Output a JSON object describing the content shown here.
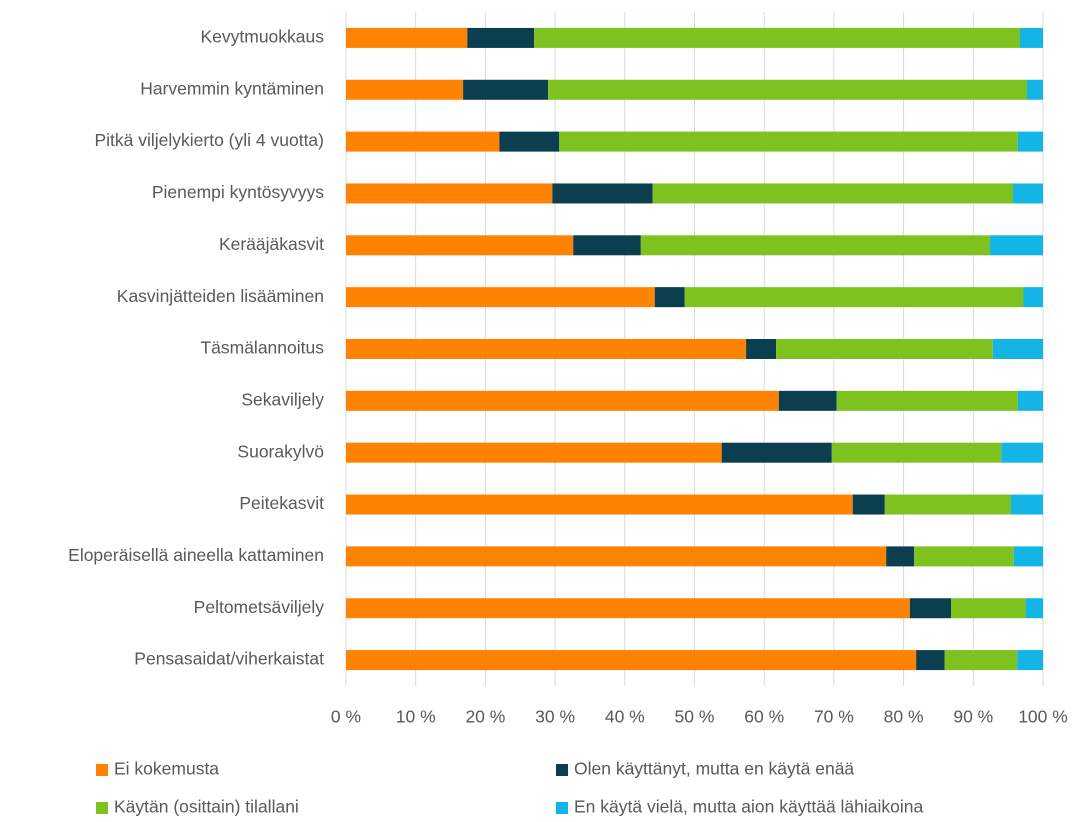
{
  "chart_data": {
    "type": "stacked-barh",
    "categories": [
      "Kevytmuokkaus",
      "Harvemmin kyntäminen",
      "Pitkä viljelykierto (yli 4 vuotta)",
      "Pienempi kyntösyvyys",
      "Kerääjäkasvit",
      "Kasvinjätteiden lisääminen",
      "Täsmälannoitus",
      "Sekaviljely",
      "Suorakylvö",
      "Peitekasvit",
      "Eloperäisellä aineella kattaminen",
      "Peltometsäviljely",
      "Pensasaidat/viherkaistat"
    ],
    "series": [
      {
        "name": "Ei kokemusta",
        "color": "#ff8200",
        "values": [
          17.4,
          16.8,
          22.0,
          29.6,
          32.6,
          44.3,
          57.4,
          62.1,
          53.9,
          72.7,
          77.5,
          80.9,
          81.8
        ]
      },
      {
        "name": "Olen käyttänyt, mutta en käytä enää",
        "color": "#0b3e4e",
        "values": [
          9.6,
          12.2,
          8.6,
          14.4,
          9.7,
          4.3,
          4.3,
          8.3,
          15.8,
          4.6,
          4.0,
          5.9,
          4.1
        ]
      },
      {
        "name": "Käytän (osittain) tilallani",
        "color": "#7dc21e",
        "values": [
          69.7,
          68.7,
          65.8,
          51.7,
          50.1,
          48.6,
          31.1,
          26.0,
          24.3,
          18.1,
          14.3,
          10.7,
          10.4
        ]
      },
      {
        "name": "En käytä vielä, mutta aion käyttää lähiaikoina",
        "color": "#13b5e6",
        "values": [
          3.3,
          2.3,
          3.6,
          4.3,
          7.6,
          2.8,
          7.2,
          3.6,
          6.0,
          4.6,
          4.2,
          2.5,
          3.7
        ]
      }
    ],
    "xlim": [
      0,
      100
    ],
    "xticks": [
      {
        "value": 0,
        "label": "0 %"
      },
      {
        "value": 10,
        "label": "10 %"
      },
      {
        "value": 20,
        "label": "20 %"
      },
      {
        "value": 30,
        "label": "30 %"
      },
      {
        "value": 40,
        "label": "40 %"
      },
      {
        "value": 50,
        "label": "50 %"
      },
      {
        "value": 60,
        "label": "60 %"
      },
      {
        "value": 70,
        "label": "70 %"
      },
      {
        "value": 80,
        "label": "80 %"
      },
      {
        "value": 90,
        "label": "90 %"
      },
      {
        "value": 100,
        "label": "100 %"
      }
    ],
    "grid": true
  }
}
